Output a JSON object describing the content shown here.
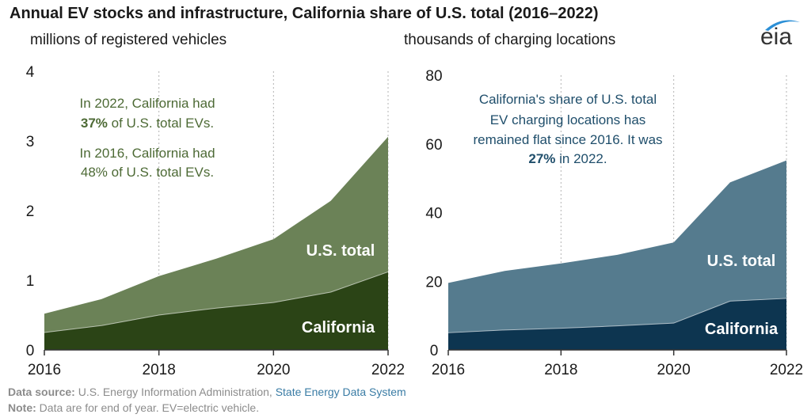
{
  "title": "Annual EV stocks and infrastructure, California share of U.S. total (2016–2022)",
  "left_unit": "millions of  registered vehicles",
  "right_unit": "thousands of charging locations",
  "logo": {
    "icon": "eia-logo-icon",
    "text": "eia"
  },
  "footer": {
    "source_label": "Data source:",
    "source_text": "U.S. Energy Information Administration,",
    "source_link": "State Energy Data System",
    "note_label": "Note:",
    "note_text": "Data are for end of year. EV=electric vehicle."
  },
  "colors": {
    "left_us": "#6b8257",
    "left_ca": "#2b4416",
    "right_us": "#557b8e",
    "right_ca": "#0d3550",
    "left_annot": "#4d6a35",
    "right_annot": "#1f4e6b",
    "axis": "#333333",
    "grid": "#b3b3b3"
  },
  "chart_data": [
    {
      "type": "area",
      "x": [
        2016,
        2017,
        2018,
        2019,
        2020,
        2021,
        2022
      ],
      "series": [
        {
          "name": "U.S. total",
          "values": [
            0.52,
            0.73,
            1.06,
            1.31,
            1.59,
            2.14,
            3.06
          ]
        },
        {
          "name": "California",
          "values": [
            0.25,
            0.35,
            0.5,
            0.6,
            0.68,
            0.83,
            1.12
          ]
        }
      ],
      "xticks": [
        "2016",
        "2018",
        "2020",
        "2022"
      ],
      "yticks": [
        "0",
        "1",
        "2",
        "3",
        "4"
      ],
      "ylim": [
        0,
        4
      ],
      "annotations": [
        {
          "segments": [
            {
              "text": "In 2022, California had",
              "bold": false
            }
          ]
        },
        {
          "segments": [
            {
              "text": "37%",
              "bold": true
            },
            {
              "text": " of U.S. total EVs.",
              "bold": false
            }
          ]
        },
        {
          "segments": [
            {
              "text": "In 2016, California had",
              "bold": false
            }
          ]
        },
        {
          "segments": [
            {
              "text": "48% of U.S. total EVs.",
              "bold": false
            }
          ]
        }
      ]
    },
    {
      "type": "area",
      "x": [
        2016,
        2017,
        2018,
        2019,
        2020,
        2021,
        2022
      ],
      "series": [
        {
          "name": "U.S. total",
          "values": [
            19.5,
            23,
            25.2,
            27.7,
            31.3,
            48.8,
            55.2
          ]
        },
        {
          "name": "California",
          "values": [
            5,
            5.8,
            6.3,
            7,
            7.8,
            14.2,
            15
          ]
        }
      ],
      "xticks": [
        "2016",
        "2018",
        "2020",
        "2022"
      ],
      "yticks": [
        "0",
        "20",
        "40",
        "60",
        "80"
      ],
      "ylim": [
        0,
        80
      ],
      "annotations": [
        {
          "segments": [
            {
              "text": "California's share of U.S. total",
              "bold": false
            }
          ]
        },
        {
          "segments": [
            {
              "text": "EV charging locations has",
              "bold": false
            }
          ]
        },
        {
          "segments": [
            {
              "text": "remained flat since 2016. It was",
              "bold": false
            }
          ]
        },
        {
          "segments": [
            {
              "text": "27%",
              "bold": true
            },
            {
              "text": " in 2022.",
              "bold": false
            }
          ]
        }
      ]
    }
  ]
}
